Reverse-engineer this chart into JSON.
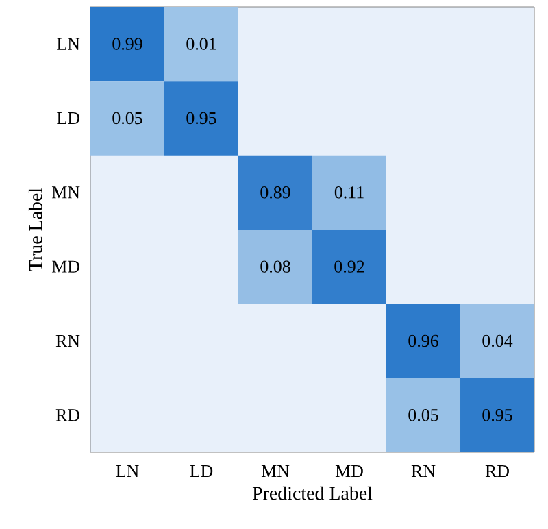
{
  "chart_data": {
    "type": "heatmap",
    "xlabel": "Predicted Label",
    "ylabel": "True Label",
    "categories": [
      "LN",
      "LD",
      "MN",
      "MD",
      "RN",
      "RD"
    ],
    "y_categories": [
      "LN",
      "LD",
      "MN",
      "MD",
      "RN",
      "RD"
    ],
    "cells": [
      [
        0.99,
        0.01,
        null,
        null,
        null,
        null
      ],
      [
        0.05,
        0.95,
        null,
        null,
        null,
        null
      ],
      [
        null,
        null,
        0.89,
        0.11,
        null,
        null
      ],
      [
        null,
        null,
        0.08,
        0.92,
        null,
        null
      ],
      [
        null,
        null,
        null,
        null,
        0.96,
        0.04
      ],
      [
        null,
        null,
        null,
        null,
        0.05,
        0.95
      ]
    ],
    "data_labels": true
  }
}
